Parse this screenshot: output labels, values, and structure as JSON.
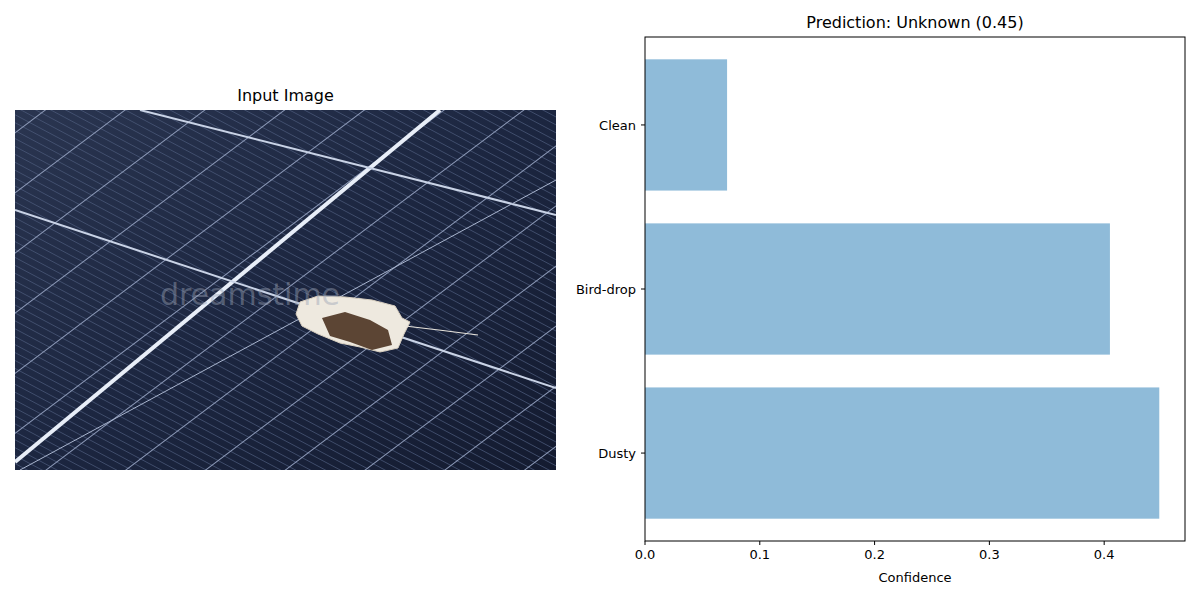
{
  "input_image": {
    "title": "Input Image",
    "watermark": "dreamstime"
  },
  "chart_data": {
    "type": "bar",
    "orientation": "horizontal",
    "title": "Prediction: Unknown (0.45)",
    "x_label": "Confidence",
    "categories": [
      "Dusty",
      "Bird-drop",
      "Clean"
    ],
    "values": [
      0.448,
      0.405,
      0.0715
    ],
    "color": "#8fbbd9",
    "xlim": [
      0,
      0.4704
    ],
    "xticks": [
      {
        "value": 0,
        "label": "0.0"
      },
      0.1,
      0.2,
      0.3,
      0.4
    ],
    "grid": false
  }
}
